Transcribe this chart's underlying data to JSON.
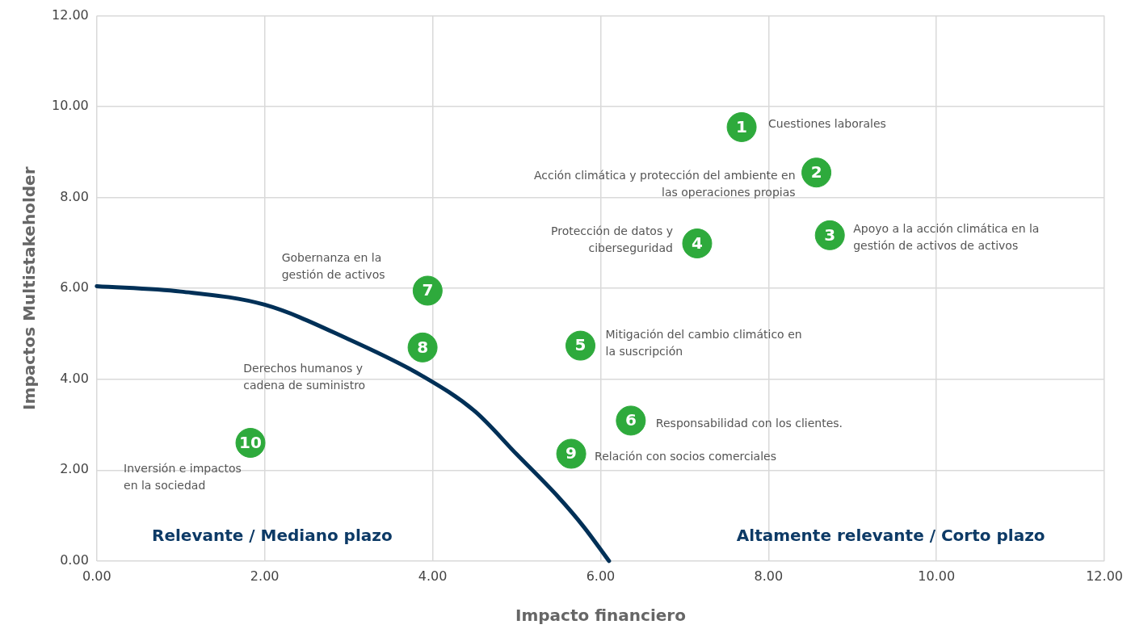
{
  "chart_data": {
    "type": "scatter",
    "xlabel": "Impacto financiero",
    "ylabel": "Impactos Multistakeholder",
    "xlim": [
      0,
      12
    ],
    "ylim": [
      0,
      12
    ],
    "xticks": [
      {
        "value": 0,
        "label": "0.00"
      },
      {
        "value": 2,
        "label": "2.00"
      },
      {
        "value": 4,
        "label": "4.00"
      },
      {
        "value": 6,
        "label": "6.00"
      },
      {
        "value": 8,
        "label": "8.00"
      },
      {
        "value": 10,
        "label": "10.00"
      },
      {
        "value": 12,
        "label": "12.00"
      }
    ],
    "yticks": [
      {
        "value": 0,
        "label": "0.00"
      },
      {
        "value": 2,
        "label": "2.00"
      },
      {
        "value": 4,
        "label": "4.00"
      },
      {
        "value": 6,
        "label": "6.00"
      },
      {
        "value": 8,
        "label": "8.00"
      },
      {
        "value": 10,
        "label": "10.00"
      },
      {
        "value": 12,
        "label": "12.00"
      }
    ],
    "grid": true,
    "legend": false,
    "series": [
      {
        "type": "line",
        "color": "#003057",
        "x": [
          0,
          1,
          2,
          3,
          3.88,
          4.5,
          5,
          5.5,
          5.8,
          6.1
        ],
        "values": [
          6.05,
          5.93,
          5.64,
          4.88,
          4.07,
          3.3,
          2.35,
          1.4,
          0.75,
          0
        ],
        "line_style": "solid"
      },
      {
        "color": "#2eaa3c",
        "marker": "circle",
        "x": [
          7.68,
          8.57,
          8.73,
          7.15,
          5.76,
          6.36,
          3.94,
          3.88,
          5.65,
          1.83
        ],
        "values": [
          9.55,
          8.55,
          7.17,
          6.99,
          4.74,
          3.09,
          5.95,
          4.7,
          2.36,
          2.6
        ]
      }
    ],
    "annotations": [
      {
        "text": "1",
        "x": 7.68,
        "y": 9.55
      },
      {
        "text": "2",
        "x": 8.57,
        "y": 8.55
      },
      {
        "text": "3",
        "x": 8.73,
        "y": 7.17
      },
      {
        "text": "4",
        "x": 7.15,
        "y": 6.99
      },
      {
        "text": "5",
        "x": 5.76,
        "y": 4.74
      },
      {
        "text": "6",
        "x": 6.36,
        "y": 3.09
      },
      {
        "text": "7",
        "x": 3.94,
        "y": 5.95
      },
      {
        "text": "8",
        "x": 3.88,
        "y": 4.7
      },
      {
        "text": "9",
        "x": 5.65,
        "y": 2.36
      },
      {
        "text": "10",
        "x": 1.83,
        "y": 2.6
      },
      {
        "text": "Cuestiones laborales",
        "x": 7.68,
        "y": 9.55
      },
      {
        "text": "Acción climática y protección del ambiente en las operaciones propias",
        "x": 8.57,
        "y": 8.55
      },
      {
        "text": "Apoyo a la acción climática en la gestión de activos de activos",
        "x": 8.73,
        "y": 7.17
      },
      {
        "text": "Protección de datos y ciberseguridad",
        "x": 7.15,
        "y": 6.99
      },
      {
        "text": "Mitigación del cambio climático en la suscripción",
        "x": 5.76,
        "y": 4.74
      },
      {
        "text": "Responsabilidad con los clientes.",
        "x": 6.36,
        "y": 3.09
      },
      "Gobernanza en la gestión de activos",
      "Derechos humanos y cadena de suministro",
      {
        "text": "Relación con socios comerciales",
        "x": 5.65,
        "y": 2.36
      },
      {
        "text": "Inversión e impactos en la sociedad",
        "x": 1.83,
        "y": 2.6
      },
      "Relevante / Mediano plazo",
      "Altamente relevante / Corto plazo"
    ]
  }
}
